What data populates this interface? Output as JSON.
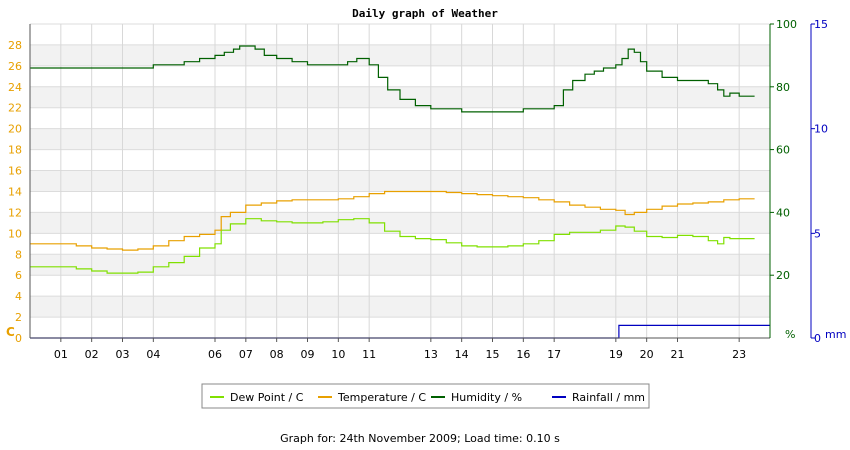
{
  "chart_data": {
    "type": "line",
    "title": "Daily graph of Weather",
    "x_ticks": [
      "01",
      "02",
      "03",
      "04",
      "06",
      "07",
      "08",
      "09",
      "10",
      "11",
      "13",
      "14",
      "15",
      "16",
      "17",
      "19",
      "20",
      "21",
      "23"
    ],
    "x_range": [
      0,
      24
    ],
    "grid": true,
    "left_axis": {
      "unit_label": "C",
      "range": [
        0,
        30
      ],
      "ticks": [
        "0",
        "2",
        "4",
        "6",
        "8",
        "10",
        "12",
        "14",
        "16",
        "18",
        "20",
        "22",
        "24",
        "26",
        "28"
      ],
      "color": "#e8a000"
    },
    "right_axis_humidity": {
      "unit_label": "%",
      "range": [
        0,
        100
      ],
      "ticks": [
        "20",
        "40",
        "60",
        "80",
        "100"
      ],
      "color": "#006000"
    },
    "right_axis_rain": {
      "unit_label": "mm",
      "range": [
        0,
        15
      ],
      "ticks": [
        "0",
        "5",
        "10",
        "15"
      ],
      "color": "#0000c0"
    },
    "series": [
      {
        "name": "Dew Point / C",
        "axis": "left",
        "color": "#80e000",
        "x": [
          0,
          1,
          1.5,
          2,
          2.5,
          3,
          3.5,
          4,
          4.5,
          5,
          5.5,
          6,
          6.2,
          6.5,
          7,
          7.5,
          8,
          8.5,
          9,
          9.5,
          10,
          10.5,
          11,
          11.5,
          12,
          12.5,
          13,
          13.5,
          14,
          14.5,
          15,
          15.5,
          16,
          16.5,
          17,
          17.5,
          18,
          18.5,
          19,
          19.3,
          19.6,
          20,
          20.5,
          21,
          21.5,
          22,
          22.3,
          22.5,
          22.7,
          23,
          23.5
        ],
        "y": [
          6.8,
          6.8,
          6.6,
          6.4,
          6.2,
          6.2,
          6.3,
          6.8,
          7.2,
          7.8,
          8.6,
          9.0,
          10.3,
          10.9,
          11.4,
          11.2,
          11.1,
          11.0,
          11.0,
          11.1,
          11.3,
          11.4,
          11.0,
          10.2,
          9.7,
          9.5,
          9.4,
          9.1,
          8.8,
          8.7,
          8.7,
          8.8,
          9.0,
          9.3,
          9.9,
          10.1,
          10.1,
          10.3,
          10.7,
          10.6,
          10.2,
          9.7,
          9.6,
          9.8,
          9.7,
          9.3,
          9.0,
          9.6,
          9.5,
          9.5,
          9.5
        ]
      },
      {
        "name": "Temperature / C",
        "axis": "left",
        "color": "#e8a000",
        "x": [
          0,
          1,
          1.5,
          2,
          2.5,
          3,
          3.5,
          4,
          4.5,
          5,
          5.5,
          6,
          6.2,
          6.5,
          7,
          7.5,
          8,
          8.5,
          9,
          9.5,
          10,
          10.5,
          11,
          11.5,
          12,
          12.5,
          13,
          13.5,
          14,
          14.5,
          15,
          15.5,
          16,
          16.5,
          17,
          17.5,
          18,
          18.5,
          19,
          19.3,
          19.6,
          20,
          20.5,
          21,
          21.5,
          22,
          22.5,
          23,
          23.5
        ],
        "y": [
          9.0,
          9.0,
          8.8,
          8.6,
          8.5,
          8.4,
          8.5,
          8.8,
          9.3,
          9.7,
          9.9,
          10.3,
          11.6,
          12.0,
          12.7,
          12.9,
          13.1,
          13.2,
          13.2,
          13.2,
          13.3,
          13.5,
          13.8,
          14.0,
          14.0,
          14.0,
          14.0,
          13.9,
          13.8,
          13.7,
          13.6,
          13.5,
          13.4,
          13.2,
          13.0,
          12.7,
          12.5,
          12.3,
          12.2,
          11.8,
          12.0,
          12.3,
          12.6,
          12.8,
          12.9,
          13.0,
          13.2,
          13.3,
          13.3
        ]
      },
      {
        "name": "Humidity / %",
        "axis": "right_humidity",
        "color": "#006000",
        "x": [
          0,
          1,
          1.5,
          2,
          2.5,
          3,
          3.5,
          4,
          4.5,
          5,
          5.5,
          6,
          6.3,
          6.6,
          6.8,
          7,
          7.3,
          7.6,
          8,
          8.5,
          9,
          9.5,
          10,
          10.3,
          10.6,
          11,
          11.3,
          11.6,
          12,
          12.5,
          13,
          13.5,
          14,
          14.5,
          15,
          15.5,
          16,
          16.5,
          17,
          17.3,
          17.6,
          18,
          18.3,
          18.6,
          19,
          19.2,
          19.4,
          19.6,
          19.8,
          20,
          20.5,
          21,
          21.5,
          22,
          22.3,
          22.5,
          22.7,
          23,
          23.5
        ],
        "y": [
          86,
          86,
          86,
          86,
          86,
          86,
          86,
          87,
          87,
          88,
          89,
          90,
          91,
          92,
          93,
          93,
          92,
          90,
          89,
          88,
          87,
          87,
          87,
          88,
          89,
          87,
          83,
          79,
          76,
          74,
          73,
          73,
          72,
          72,
          72,
          72,
          73,
          73,
          74,
          79,
          82,
          84,
          85,
          86,
          87,
          89,
          92,
          91,
          88,
          85,
          83,
          82,
          82,
          81,
          79,
          77,
          78,
          77,
          77
        ]
      },
      {
        "name": "Rainfall / mm",
        "axis": "right_rain",
        "color": "#0000c0",
        "x": [
          0,
          19.1,
          19.1,
          24
        ],
        "y": [
          0,
          0,
          0.6,
          0.6
        ]
      }
    ]
  },
  "footer": {
    "text": "Graph for: 24th November 2009; Load time: 0.10 s"
  }
}
